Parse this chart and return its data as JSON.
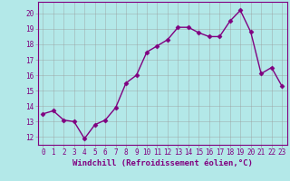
{
  "x": [
    0,
    1,
    2,
    3,
    4,
    5,
    6,
    7,
    8,
    9,
    10,
    11,
    12,
    13,
    14,
    15,
    16,
    17,
    18,
    19,
    20,
    21,
    22,
    23
  ],
  "y": [
    13.5,
    13.7,
    13.1,
    13.0,
    11.9,
    12.8,
    13.1,
    13.9,
    15.5,
    16.0,
    17.5,
    17.9,
    18.3,
    19.1,
    19.1,
    18.75,
    18.5,
    18.5,
    19.5,
    20.2,
    18.8,
    16.1,
    16.5,
    15.3
  ],
  "line_color": "#800080",
  "marker": "D",
  "marker_size": 2.5,
  "bg_color": "#b3e8e8",
  "grid_color": "#999999",
  "xlabel": "Windchill (Refroidissement éolien,°C)",
  "ylim": [
    11.5,
    20.75
  ],
  "xlim": [
    -0.5,
    23.5
  ],
  "yticks": [
    12,
    13,
    14,
    15,
    16,
    17,
    18,
    19,
    20
  ],
  "xticks": [
    0,
    1,
    2,
    3,
    4,
    5,
    6,
    7,
    8,
    9,
    10,
    11,
    12,
    13,
    14,
    15,
    16,
    17,
    18,
    19,
    20,
    21,
    22,
    23
  ],
  "tick_label_size": 5.5,
  "xlabel_size": 6.5,
  "line_width": 1.0
}
